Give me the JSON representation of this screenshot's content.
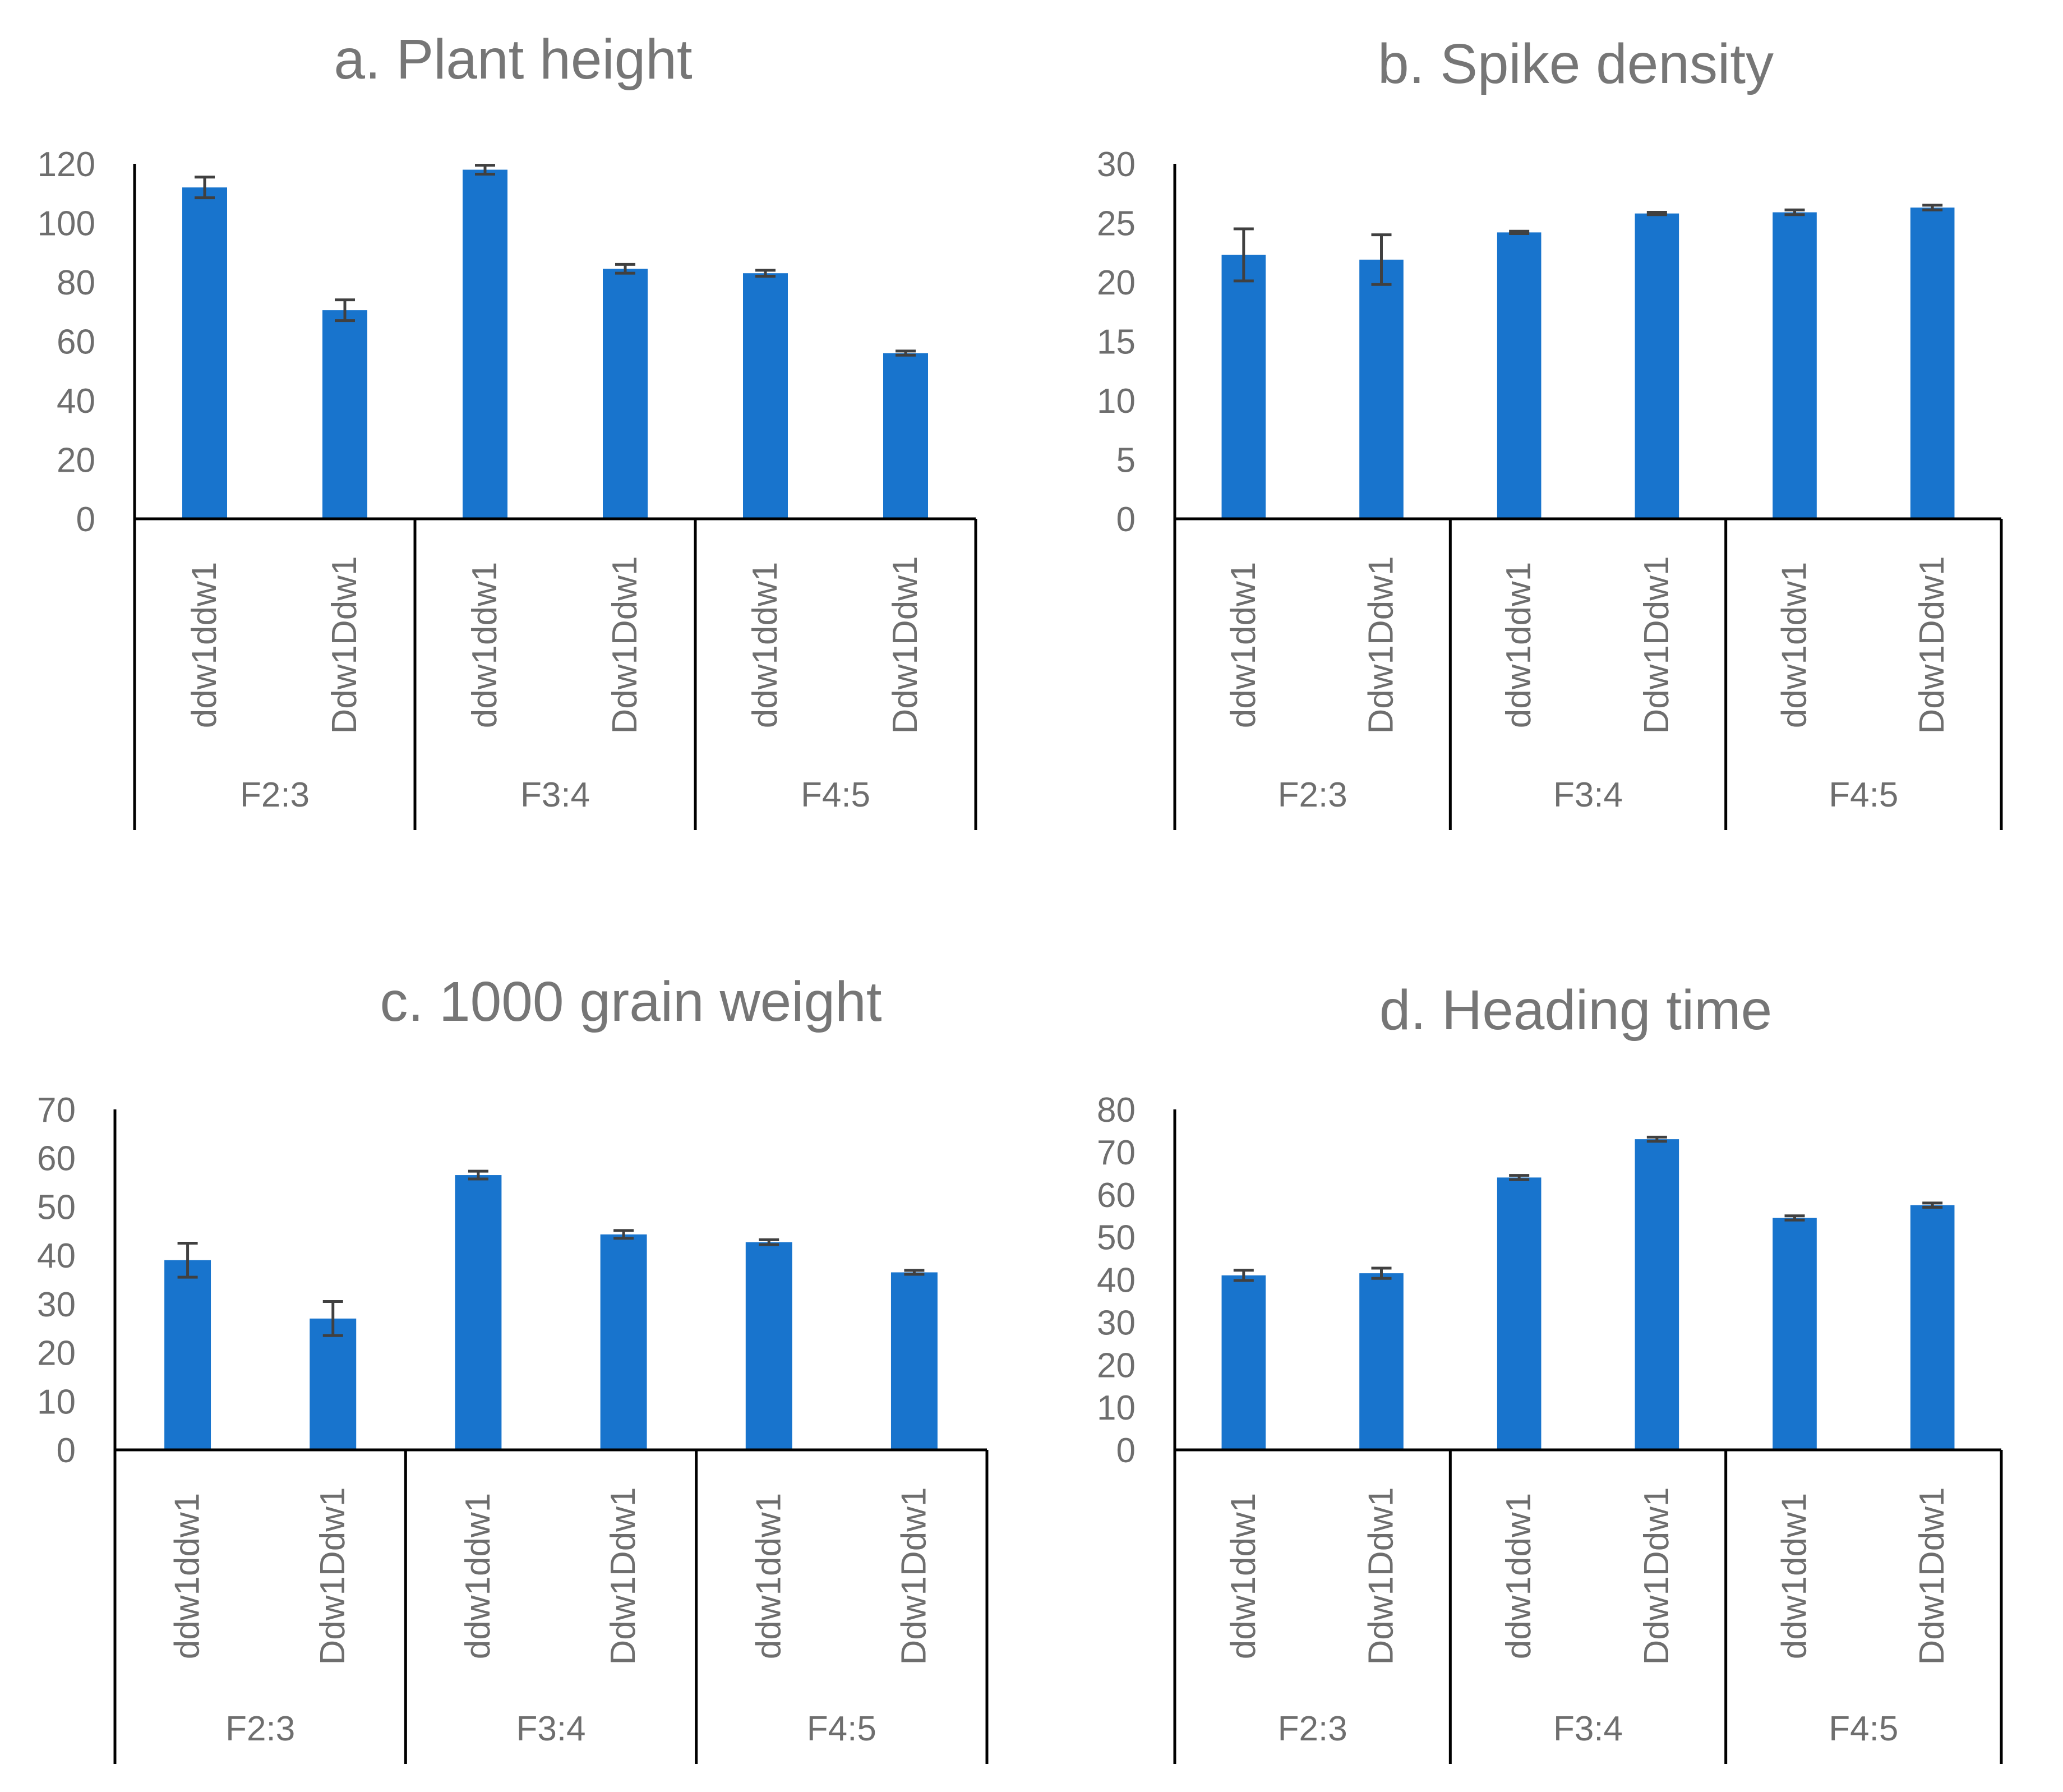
{
  "colors": {
    "bar": "#1874CD",
    "error": "#404040",
    "axis": "#000000",
    "yaxis": "#000000",
    "text": "#6e6e6e"
  },
  "chart_data": [
    {
      "type": "bar",
      "title": "a. Plant height",
      "ylim": [
        0,
        120
      ],
      "yticks": [
        0,
        20,
        40,
        60,
        80,
        100,
        120
      ],
      "categories": [
        "ddw1ddw1",
        "Ddw1Ddw1",
        "ddw1ddw1",
        "Ddw1Ddw1",
        "ddw1ddw1",
        "Ddw1Ddw1"
      ],
      "groups": [
        "F2:3",
        "F3:4",
        "F4:5"
      ],
      "values": [
        112,
        70.5,
        118,
        84.5,
        83,
        56
      ],
      "errors": [
        3.5,
        3.5,
        1.5,
        1.5,
        1,
        0.7
      ]
    },
    {
      "type": "bar",
      "title": "b. Spike density",
      "ylim": [
        0,
        30
      ],
      "yticks": [
        0,
        5,
        10,
        15,
        20,
        25,
        30
      ],
      "categories": [
        "ddw1ddw1",
        "Ddw1Ddw1",
        "ddw1ddw1",
        "Ddw1Ddw1",
        "ddw1ddw1",
        "Ddw1Ddw1"
      ],
      "groups": [
        "F2:3",
        "F3:4",
        "F4:5"
      ],
      "values": [
        22.3,
        21.9,
        24.2,
        25.8,
        25.9,
        26.3
      ],
      "errors": [
        2.2,
        2.1,
        0.1,
        0.1,
        0.2,
        0.2
      ]
    },
    {
      "type": "bar",
      "title": "c. 1000 grain weight",
      "ylim": [
        0,
        70
      ],
      "yticks": [
        0,
        10,
        20,
        30,
        40,
        50,
        60,
        70
      ],
      "categories": [
        "ddw1ddw1",
        "Ddw1Ddw1",
        "ddw1ddw1",
        "Ddw1Ddw1",
        "ddw1ddw1",
        "Ddw1Ddw1"
      ],
      "groups": [
        "F2:3",
        "F3:4",
        "F4:5"
      ],
      "values": [
        39,
        27,
        56.5,
        44.3,
        42.7,
        36.5
      ],
      "errors": [
        3.5,
        3.5,
        0.8,
        0.8,
        0.5,
        0.4
      ]
    },
    {
      "type": "bar",
      "title": "d. Heading time",
      "ylim": [
        0,
        80
      ],
      "yticks": [
        0,
        10,
        20,
        30,
        40,
        50,
        60,
        70,
        80
      ],
      "categories": [
        "ddw1ddw1",
        "Ddw1Ddw1",
        "ddw1ddw1",
        "Ddw1Ddw1",
        "ddw1ddw1",
        "Ddw1Ddw1"
      ],
      "groups": [
        "F2:3",
        "F3:4",
        "F4:5"
      ],
      "values": [
        41,
        41.5,
        64,
        73,
        54.5,
        57.5
      ],
      "errors": [
        1.2,
        1.2,
        0.5,
        0.5,
        0.5,
        0.5
      ]
    }
  ]
}
